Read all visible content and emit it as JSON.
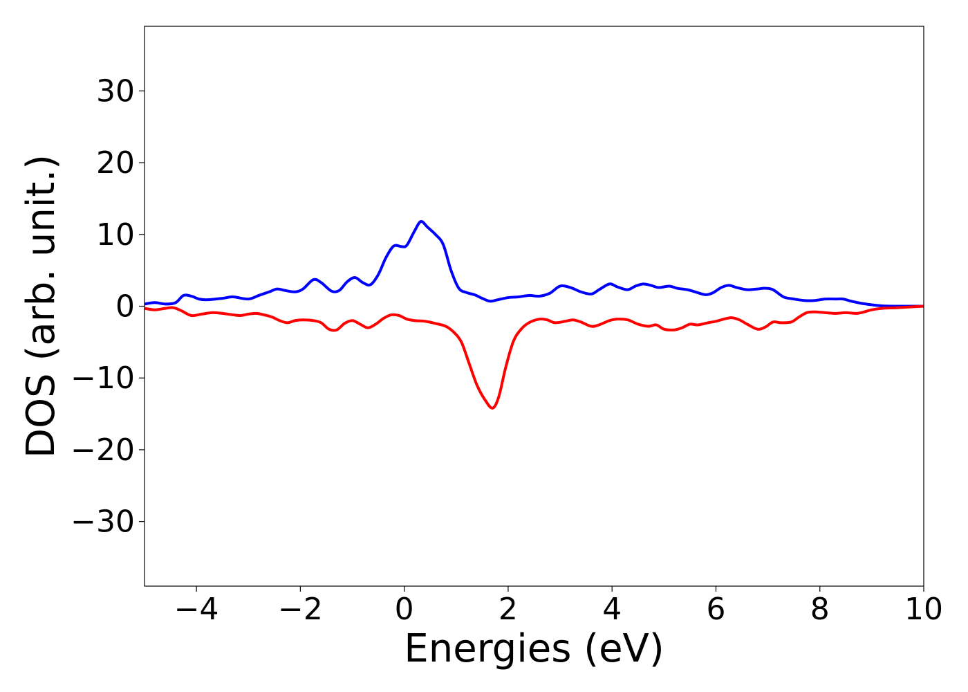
{
  "chart_data": {
    "type": "line",
    "title": "",
    "xlabel": "Energies (eV)",
    "ylabel": "DOS (arb. unit.)",
    "xlim": [
      -5,
      10
    ],
    "ylim": [
      -39,
      39
    ],
    "xticks": [
      -4,
      -2,
      0,
      2,
      4,
      6,
      8,
      10
    ],
    "yticks": [
      -30,
      -20,
      -10,
      0,
      10,
      20,
      30
    ],
    "grid": false,
    "series": [
      {
        "color": "#0000ff",
        "points": [
          [
            -5.0,
            0.3
          ],
          [
            -4.8,
            0.5
          ],
          [
            -4.6,
            0.3
          ],
          [
            -4.4,
            0.5
          ],
          [
            -4.25,
            1.5
          ],
          [
            -4.1,
            1.4
          ],
          [
            -3.95,
            1.0
          ],
          [
            -3.8,
            0.9
          ],
          [
            -3.5,
            1.1
          ],
          [
            -3.3,
            1.3
          ],
          [
            -3.0,
            1.0
          ],
          [
            -2.8,
            1.5
          ],
          [
            -2.6,
            2.0
          ],
          [
            -2.45,
            2.4
          ],
          [
            -2.3,
            2.2
          ],
          [
            -2.1,
            2.0
          ],
          [
            -1.95,
            2.4
          ],
          [
            -1.75,
            3.7
          ],
          [
            -1.6,
            3.3
          ],
          [
            -1.4,
            2.1
          ],
          [
            -1.25,
            2.2
          ],
          [
            -1.1,
            3.4
          ],
          [
            -0.95,
            4.0
          ],
          [
            -0.8,
            3.3
          ],
          [
            -0.65,
            3.0
          ],
          [
            -0.5,
            4.4
          ],
          [
            -0.35,
            6.8
          ],
          [
            -0.2,
            8.4
          ],
          [
            -0.05,
            8.3
          ],
          [
            0.05,
            8.5
          ],
          [
            0.2,
            10.5
          ],
          [
            0.32,
            11.8
          ],
          [
            0.45,
            11.0
          ],
          [
            0.6,
            10.0
          ],
          [
            0.75,
            8.6
          ],
          [
            0.9,
            5.0
          ],
          [
            1.05,
            2.5
          ],
          [
            1.2,
            1.9
          ],
          [
            1.35,
            1.6
          ],
          [
            1.5,
            1.1
          ],
          [
            1.65,
            0.7
          ],
          [
            1.8,
            0.9
          ],
          [
            2.0,
            1.2
          ],
          [
            2.2,
            1.3
          ],
          [
            2.4,
            1.5
          ],
          [
            2.6,
            1.4
          ],
          [
            2.8,
            1.8
          ],
          [
            3.0,
            2.8
          ],
          [
            3.2,
            2.6
          ],
          [
            3.4,
            2.0
          ],
          [
            3.6,
            1.7
          ],
          [
            3.75,
            2.3
          ],
          [
            3.95,
            3.1
          ],
          [
            4.1,
            2.7
          ],
          [
            4.3,
            2.3
          ],
          [
            4.45,
            2.8
          ],
          [
            4.6,
            3.1
          ],
          [
            4.75,
            2.9
          ],
          [
            4.9,
            2.6
          ],
          [
            5.1,
            2.8
          ],
          [
            5.25,
            2.5
          ],
          [
            5.45,
            2.3
          ],
          [
            5.6,
            2.0
          ],
          [
            5.8,
            1.6
          ],
          [
            5.95,
            1.9
          ],
          [
            6.1,
            2.6
          ],
          [
            6.25,
            2.9
          ],
          [
            6.4,
            2.6
          ],
          [
            6.6,
            2.3
          ],
          [
            6.8,
            2.4
          ],
          [
            6.95,
            2.5
          ],
          [
            7.1,
            2.3
          ],
          [
            7.3,
            1.3
          ],
          [
            7.5,
            1.0
          ],
          [
            7.7,
            0.8
          ],
          [
            7.9,
            0.8
          ],
          [
            8.1,
            1.0
          ],
          [
            8.3,
            1.0
          ],
          [
            8.45,
            1.0
          ],
          [
            8.6,
            0.7
          ],
          [
            8.8,
            0.4
          ],
          [
            9.0,
            0.2
          ],
          [
            9.2,
            0.05
          ],
          [
            9.5,
            0.0
          ],
          [
            10.0,
            0.0
          ]
        ]
      },
      {
        "color": "#ff0000",
        "points": [
          [
            -5.0,
            -0.3
          ],
          [
            -4.8,
            -0.5
          ],
          [
            -4.6,
            -0.3
          ],
          [
            -4.45,
            -0.2
          ],
          [
            -4.3,
            -0.6
          ],
          [
            -4.1,
            -1.3
          ],
          [
            -3.9,
            -1.1
          ],
          [
            -3.7,
            -0.9
          ],
          [
            -3.5,
            -1.0
          ],
          [
            -3.3,
            -1.2
          ],
          [
            -3.15,
            -1.3
          ],
          [
            -3.0,
            -1.1
          ],
          [
            -2.85,
            -1.0
          ],
          [
            -2.7,
            -1.2
          ],
          [
            -2.55,
            -1.5
          ],
          [
            -2.4,
            -2.0
          ],
          [
            -2.25,
            -2.3
          ],
          [
            -2.1,
            -2.0
          ],
          [
            -1.95,
            -1.9
          ],
          [
            -1.75,
            -2.0
          ],
          [
            -1.6,
            -2.3
          ],
          [
            -1.45,
            -3.2
          ],
          [
            -1.3,
            -3.3
          ],
          [
            -1.15,
            -2.4
          ],
          [
            -1.0,
            -2.0
          ],
          [
            -0.85,
            -2.5
          ],
          [
            -0.7,
            -3.0
          ],
          [
            -0.55,
            -2.5
          ],
          [
            -0.4,
            -1.7
          ],
          [
            -0.25,
            -1.2
          ],
          [
            -0.1,
            -1.3
          ],
          [
            0.05,
            -1.8
          ],
          [
            0.2,
            -2.0
          ],
          [
            0.4,
            -2.1
          ],
          [
            0.6,
            -2.4
          ],
          [
            0.8,
            -2.8
          ],
          [
            0.95,
            -3.6
          ],
          [
            1.1,
            -5.0
          ],
          [
            1.25,
            -8.0
          ],
          [
            1.4,
            -11.0
          ],
          [
            1.55,
            -13.0
          ],
          [
            1.7,
            -14.2
          ],
          [
            1.82,
            -12.6
          ],
          [
            1.95,
            -8.6
          ],
          [
            2.1,
            -4.9
          ],
          [
            2.25,
            -3.2
          ],
          [
            2.4,
            -2.3
          ],
          [
            2.6,
            -1.8
          ],
          [
            2.75,
            -1.9
          ],
          [
            2.9,
            -2.3
          ],
          [
            3.1,
            -2.1
          ],
          [
            3.25,
            -1.9
          ],
          [
            3.4,
            -2.2
          ],
          [
            3.6,
            -2.8
          ],
          [
            3.75,
            -2.6
          ],
          [
            3.95,
            -2.0
          ],
          [
            4.1,
            -1.8
          ],
          [
            4.3,
            -1.9
          ],
          [
            4.5,
            -2.5
          ],
          [
            4.7,
            -2.8
          ],
          [
            4.85,
            -2.6
          ],
          [
            5.0,
            -3.2
          ],
          [
            5.2,
            -3.3
          ],
          [
            5.35,
            -3.0
          ],
          [
            5.5,
            -2.5
          ],
          [
            5.65,
            -2.6
          ],
          [
            5.85,
            -2.3
          ],
          [
            6.0,
            -2.1
          ],
          [
            6.15,
            -1.8
          ],
          [
            6.3,
            -1.6
          ],
          [
            6.45,
            -1.9
          ],
          [
            6.6,
            -2.5
          ],
          [
            6.8,
            -3.2
          ],
          [
            6.95,
            -2.9
          ],
          [
            7.1,
            -2.2
          ],
          [
            7.25,
            -2.3
          ],
          [
            7.45,
            -2.2
          ],
          [
            7.6,
            -1.5
          ],
          [
            7.75,
            -0.9
          ],
          [
            7.9,
            -0.8
          ],
          [
            8.1,
            -0.9
          ],
          [
            8.3,
            -1.0
          ],
          [
            8.5,
            -0.9
          ],
          [
            8.7,
            -1.0
          ],
          [
            8.85,
            -0.8
          ],
          [
            9.0,
            -0.5
          ],
          [
            9.2,
            -0.3
          ],
          [
            9.5,
            -0.2
          ],
          [
            10.0,
            0.0
          ]
        ]
      }
    ]
  }
}
